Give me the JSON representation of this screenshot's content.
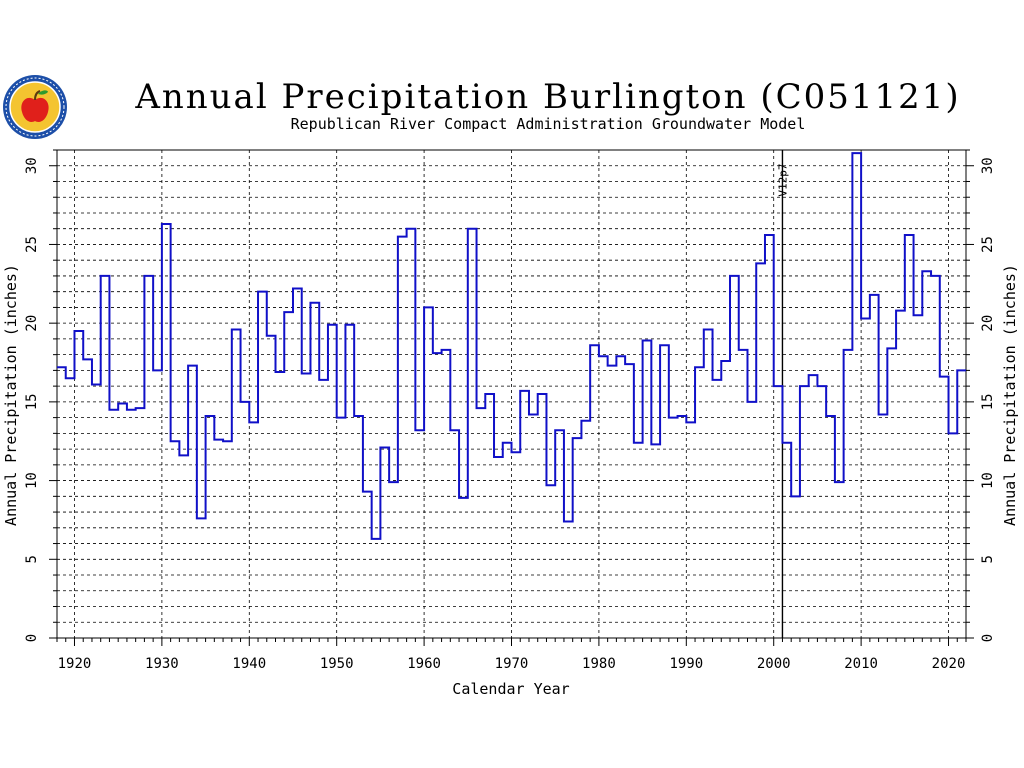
{
  "logo": {
    "icon": "apple-seal-icon",
    "ring_color": "#1d4fa8",
    "fill_color": "#f4c430",
    "apple_color": "#e0201b"
  },
  "chart_data": {
    "type": "line",
    "style": "step",
    "title": "Annual Precipitation Burlington (C051121)",
    "subtitle": "Republican River Compact Administration Groundwater Model",
    "xlabel": "Calendar Year",
    "ylabel": "Annual Precipitation (inches)",
    "ylabel_right": "Annual Precipitation (inches)",
    "xlim": [
      1918,
      2022
    ],
    "ylim": [
      0,
      31
    ],
    "x_ticks": [
      1920,
      1930,
      1940,
      1950,
      1960,
      1970,
      1980,
      1990,
      2000,
      2010,
      2020
    ],
    "y_ticks": [
      0,
      5,
      10,
      15,
      20,
      25,
      30
    ],
    "grid": true,
    "line_color": "#1010c8",
    "annotations": [
      {
        "year": 2001,
        "label": "V12p7"
      }
    ],
    "series": [
      {
        "x": [
          1918,
          1919,
          1920,
          1921,
          1922,
          1923,
          1924,
          1925,
          1926,
          1927,
          1928,
          1929,
          1930,
          1931,
          1932,
          1933,
          1934,
          1935,
          1936,
          1937,
          1938,
          1939,
          1940,
          1941,
          1942,
          1943,
          1944,
          1945,
          1946,
          1947,
          1948,
          1949,
          1950,
          1951,
          1952,
          1953,
          1954,
          1955,
          1956,
          1957,
          1958,
          1959,
          1960,
          1961,
          1962,
          1963,
          1964,
          1965,
          1966,
          1967,
          1968,
          1969,
          1970,
          1971,
          1972,
          1973,
          1974,
          1975,
          1976,
          1977,
          1978,
          1979,
          1980,
          1981,
          1982,
          1983,
          1984,
          1985,
          1986,
          1987,
          1988,
          1989,
          1990,
          1991,
          1992,
          1993,
          1994,
          1995,
          1996,
          1997,
          1998,
          1999,
          2000,
          2001,
          2002,
          2003,
          2004,
          2005,
          2006,
          2007,
          2008,
          2009,
          2010,
          2011,
          2012,
          2013,
          2014,
          2015,
          2016,
          2017,
          2018,
          2019,
          2020,
          2021
        ],
        "values": [
          17.2,
          16.5,
          19.5,
          17.7,
          16.1,
          23.0,
          14.5,
          14.9,
          14.5,
          14.6,
          23.0,
          17.0,
          26.3,
          12.5,
          11.6,
          17.3,
          7.6,
          14.1,
          12.6,
          12.5,
          19.6,
          15.0,
          13.7,
          22.0,
          19.2,
          16.9,
          20.7,
          22.2,
          16.8,
          21.3,
          16.4,
          19.9,
          14.0,
          19.9,
          14.1,
          9.3,
          6.3,
          12.1,
          9.9,
          25.5,
          26.0,
          13.2,
          21.0,
          18.1,
          18.3,
          13.2,
          8.9,
          26.0,
          14.6,
          15.5,
          11.5,
          12.4,
          11.8,
          15.7,
          14.2,
          15.5,
          9.7,
          13.2,
          7.4,
          12.7,
          13.8,
          18.6,
          17.9,
          17.3,
          17.9,
          17.4,
          12.4,
          18.9,
          12.3,
          18.6,
          14.0,
          14.1,
          13.7,
          17.2,
          19.6,
          16.4,
          17.6,
          23.0,
          18.3,
          15.0,
          23.8,
          25.6,
          16.0,
          12.4,
          9.0,
          16.0,
          16.7,
          16.0,
          14.1,
          9.9,
          18.3,
          30.8,
          20.3,
          21.8,
          14.2,
          18.4,
          20.8,
          25.6,
          20.5,
          23.3,
          23.0,
          16.6,
          13.0,
          17.0
        ]
      }
    ]
  }
}
